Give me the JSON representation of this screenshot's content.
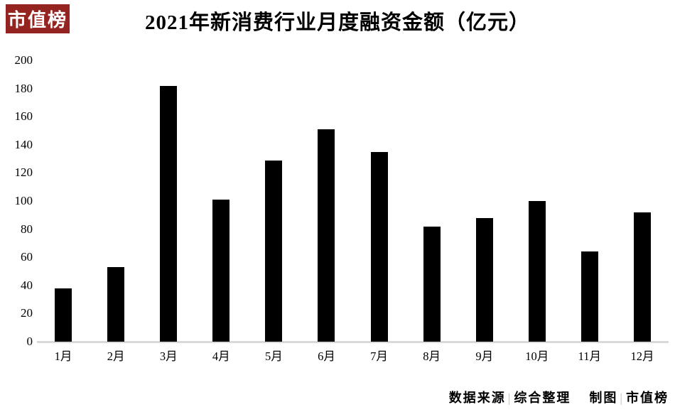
{
  "logo": {
    "text": "市值榜"
  },
  "title": {
    "text": "2021年新消费行业月度融资金额（亿元）"
  },
  "chart_data": {
    "type": "bar",
    "title": "2021年新消费行业月度融资金额（亿元）",
    "categories": [
      "1月",
      "2月",
      "3月",
      "4月",
      "5月",
      "6月",
      "7月",
      "8月",
      "9月",
      "10月",
      "11月",
      "12月"
    ],
    "values": [
      38,
      53,
      182,
      101,
      129,
      151,
      135,
      82,
      88,
      100,
      64,
      92
    ],
    "xlabel": "",
    "ylabel": "",
    "ylim": [
      0,
      200
    ],
    "yticks": [
      0,
      20,
      40,
      60,
      80,
      100,
      120,
      140,
      160,
      180,
      200
    ],
    "grid": false,
    "legend": false,
    "bar_color": "#000000",
    "axis_line_color": "#d9d9d9"
  },
  "footer": {
    "source_label": "数据来源",
    "separator": "|",
    "source_value": "综合整理",
    "author_label": "制图",
    "author_value": "市值榜"
  },
  "colors": {
    "background": "#ffffff",
    "logo_bg": "#94241f",
    "logo_text": "#ffffff",
    "text": "#000000",
    "footer_separator": "#c4c0ba"
  }
}
